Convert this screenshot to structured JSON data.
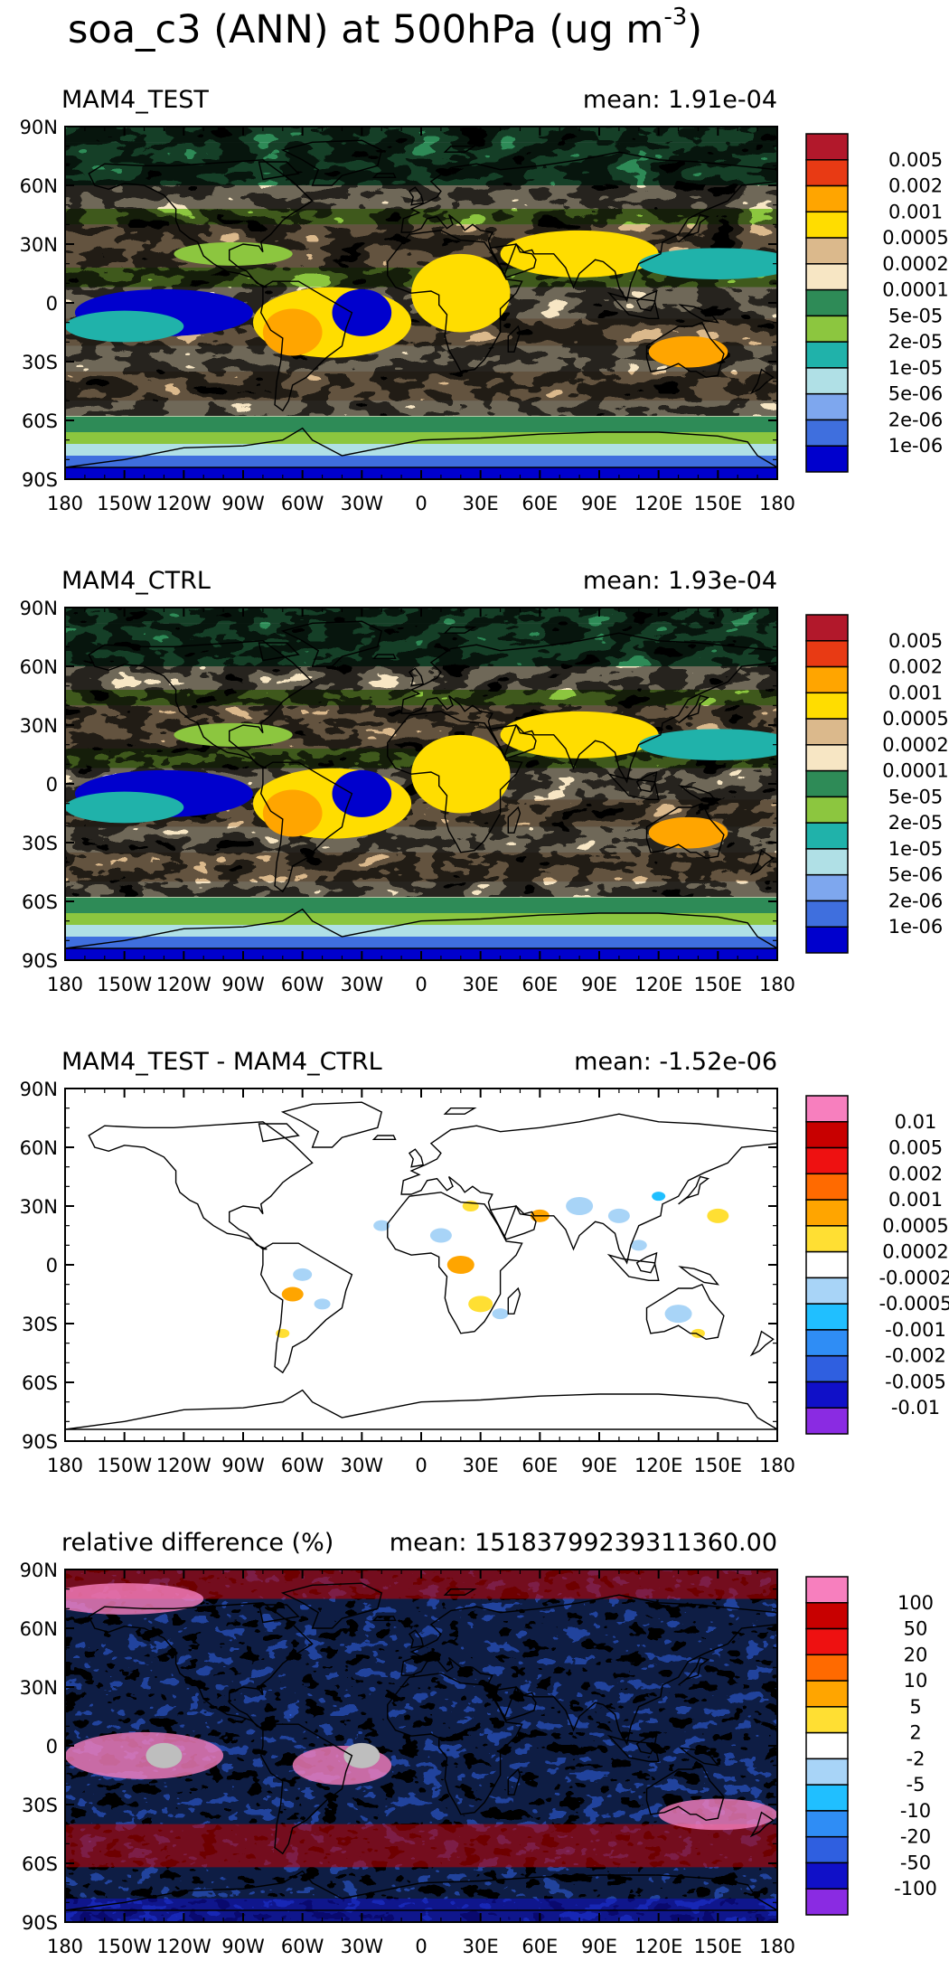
{
  "title": "soa_c3 (ANN) at 500hPa (ug m",
  "title_sup": "-3",
  "title_close": ")",
  "lat_labels": [
    "90N",
    "60N",
    "30N",
    "0",
    "30S",
    "60S",
    "90S"
  ],
  "lon_labels": [
    "180",
    "150W",
    "120W",
    "90W",
    "60W",
    "30W",
    "0",
    "30E",
    "60E",
    "90E",
    "120E",
    "150E",
    "180"
  ],
  "palettes": {
    "abs": [
      "#b2182b",
      "#e83a14",
      "#ffa500",
      "#ffdd00",
      "#dbb98c",
      "#f7e6c4",
      "#2e8b57",
      "#8cc63f",
      "#20b2aa",
      "#b0e0e6",
      "#7ea7ee",
      "#3f6fde",
      "#0000cd"
    ],
    "diff": [
      "#f77fbe",
      "#c80000",
      "#ee1111",
      "#ff6a00",
      "#ffa500",
      "#ffdf33",
      "#ffffff",
      "#a8d4f7",
      "#20bfff",
      "#2f8df5",
      "#2f5fe0",
      "#1010c8",
      "#8a2be2"
    ],
    "land_outline": "#000000",
    "missing": "#bebebe"
  },
  "chart_data": [
    {
      "type": "heatmap",
      "title": "MAM4_TEST",
      "mean_label": "mean:  1.91e-04",
      "ylim": [
        -90,
        90
      ],
      "xlim": [
        -180,
        180
      ],
      "colorbar_levels": [
        "0.005",
        "0.002",
        "0.001",
        "0.0005",
        "0.0002",
        "0.0001",
        "5e-05",
        "2e-05",
        "1e-05",
        "5e-06",
        "2e-06",
        "1e-06"
      ],
      "palette": "abs"
    },
    {
      "type": "heatmap",
      "title": "MAM4_CTRL",
      "mean_label": "mean:  1.93e-04",
      "ylim": [
        -90,
        90
      ],
      "xlim": [
        -180,
        180
      ],
      "colorbar_levels": [
        "0.005",
        "0.002",
        "0.001",
        "0.0005",
        "0.0002",
        "0.0001",
        "5e-05",
        "2e-05",
        "1e-05",
        "5e-06",
        "2e-06",
        "1e-06"
      ],
      "palette": "abs"
    },
    {
      "type": "heatmap",
      "title": "MAM4_TEST - MAM4_CTRL",
      "mean_label": "mean: -1.52e-06",
      "ylim": [
        -90,
        90
      ],
      "xlim": [
        -180,
        180
      ],
      "colorbar_levels": [
        "0.01",
        "0.005",
        "0.002",
        "0.001",
        "0.0005",
        "0.0002",
        "-0.0002",
        "-0.0005",
        "-0.001",
        "-0.002",
        "-0.005",
        "-0.01"
      ],
      "palette": "diff"
    },
    {
      "type": "heatmap",
      "title": "relative difference (%)",
      "mean_label": "mean: 15183799239311360.00",
      "ylim": [
        -90,
        90
      ],
      "xlim": [
        -180,
        180
      ],
      "colorbar_levels": [
        "100",
        "50",
        "20",
        "10",
        "5",
        "2",
        "-2",
        "-5",
        "-10",
        "-20",
        "-50",
        "-100"
      ],
      "palette": "diff"
    }
  ]
}
